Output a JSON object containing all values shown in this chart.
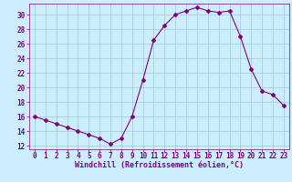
{
  "x": [
    0,
    1,
    2,
    3,
    4,
    5,
    6,
    7,
    8,
    9,
    10,
    11,
    12,
    13,
    14,
    15,
    16,
    17,
    18,
    19,
    20,
    21,
    22,
    23
  ],
  "y": [
    16.0,
    15.5,
    15.0,
    14.5,
    14.0,
    13.5,
    13.0,
    12.2,
    13.0,
    16.0,
    21.0,
    26.5,
    28.5,
    30.0,
    30.5,
    31.0,
    30.5,
    30.3,
    30.5,
    27.0,
    22.5,
    19.5,
    19.0,
    17.5
  ],
  "line_color": "#800080",
  "marker": "D",
  "marker_size": 2.0,
  "bg_color": "#cceeff",
  "grid_color": "#99cccc",
  "xlabel": "Windchill (Refroidissement éolien,°C)",
  "xlim": [
    -0.5,
    23.5
  ],
  "ylim": [
    11.5,
    31.5
  ],
  "yticks": [
    12,
    14,
    16,
    18,
    20,
    22,
    24,
    26,
    28,
    30
  ],
  "xticks": [
    0,
    1,
    2,
    3,
    4,
    5,
    6,
    7,
    8,
    9,
    10,
    11,
    12,
    13,
    14,
    15,
    16,
    17,
    18,
    19,
    20,
    21,
    22,
    23
  ],
  "tick_color": "#800080",
  "label_color": "#800080",
  "label_fontsize": 6.0,
  "tick_fontsize": 5.5,
  "linewidth": 0.8
}
